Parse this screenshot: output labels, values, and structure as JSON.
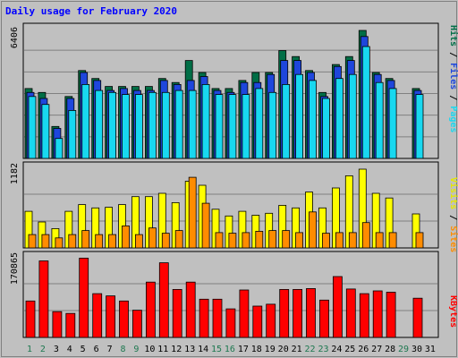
{
  "chart_data": [
    {
      "type": "bar",
      "title": "Daily usage for February 2020",
      "panel": "top",
      "ymax_label": "6406",
      "ylabel_parts": [
        "Pages",
        "Files",
        "Hits"
      ],
      "categories": [
        "1",
        "2",
        "3",
        "4",
        "5",
        "6",
        "7",
        "8",
        "9",
        "10",
        "11",
        "12",
        "13",
        "14",
        "15",
        "16",
        "17",
        "18",
        "19",
        "20",
        "21",
        "22",
        "23",
        "24",
        "25",
        "26",
        "27",
        "28",
        "29",
        "30",
        "31"
      ],
      "series": [
        {
          "name": "Hits",
          "color": "#006e46",
          "values": [
            3500,
            3300,
            1600,
            3100,
            4400,
            4000,
            3600,
            3600,
            3600,
            3600,
            4000,
            3800,
            4900,
            4300,
            3500,
            3500,
            3900,
            4300,
            4300,
            5400,
            5100,
            4400,
            3300,
            4700,
            5100,
            6406,
            4300,
            4000,
            null,
            3500,
            null
          ]
        },
        {
          "name": "Files",
          "color": "#1e46dc",
          "values": [
            3300,
            3000,
            1500,
            3000,
            4300,
            3900,
            3400,
            3500,
            3400,
            3400,
            3900,
            3700,
            3900,
            4100,
            3400,
            3300,
            3800,
            3800,
            4200,
            4900,
            4900,
            4300,
            3100,
            4600,
            4900,
            6100,
            4200,
            3900,
            null,
            3400,
            null
          ]
        },
        {
          "name": "Pages",
          "color": "#18d8f0",
          "values": [
            3100,
            2700,
            1000,
            2400,
            3700,
            3400,
            3300,
            3200,
            3200,
            3300,
            3300,
            3400,
            3400,
            3700,
            3200,
            3200,
            3200,
            3500,
            3300,
            3700,
            4200,
            3900,
            3000,
            4000,
            4200,
            5600,
            3800,
            3500,
            null,
            3200,
            null
          ]
        }
      ]
    },
    {
      "type": "bar",
      "panel": "middle",
      "ymax_label": "1182",
      "ylabel_parts": [
        "Sites",
        "Visits"
      ],
      "categories": [
        "1",
        "2",
        "3",
        "4",
        "5",
        "6",
        "7",
        "8",
        "9",
        "10",
        "11",
        "12",
        "13",
        "14",
        "15",
        "16",
        "17",
        "18",
        "19",
        "20",
        "21",
        "22",
        "23",
        "24",
        "25",
        "26",
        "27",
        "28",
        "29",
        "30",
        "31"
      ],
      "series": [
        {
          "name": "Visits",
          "color": "#ffff00",
          "values": [
            550,
            390,
            290,
            550,
            650,
            600,
            610,
            650,
            770,
            770,
            820,
            680,
            1000,
            940,
            580,
            480,
            550,
            490,
            520,
            640,
            600,
            840,
            600,
            900,
            1082,
            1182,
            820,
            750,
            null,
            510,
            null
          ]
        },
        {
          "name": "Sites",
          "color": "#ff8c00",
          "values": [
            200,
            200,
            150,
            200,
            260,
            200,
            200,
            330,
            200,
            300,
            220,
            260,
            1060,
            670,
            230,
            220,
            230,
            250,
            260,
            260,
            230,
            540,
            220,
            230,
            230,
            380,
            230,
            230,
            null,
            230,
            null
          ]
        }
      ]
    },
    {
      "type": "bar",
      "panel": "bottom",
      "ymax_label": "170865",
      "ylabel_parts": [
        "KBytes"
      ],
      "categories": [
        "1",
        "2",
        "3",
        "4",
        "5",
        "6",
        "7",
        "8",
        "9",
        "10",
        "11",
        "12",
        "13",
        "14",
        "15",
        "16",
        "17",
        "18",
        "19",
        "20",
        "21",
        "22",
        "23",
        "24",
        "25",
        "26",
        "27",
        "28",
        "29",
        "30",
        "31"
      ],
      "series": [
        {
          "name": "KBytes",
          "color": "#ff0000",
          "values": [
            79000,
            166000,
            56000,
            52000,
            172000,
            95000,
            90000,
            79000,
            59000,
            120000,
            162000,
            104000,
            120000,
            83000,
            83000,
            62000,
            103000,
            68000,
            72000,
            104000,
            104000,
            106000,
            81000,
            132000,
            105000,
            95000,
            101000,
            98000,
            null,
            85000,
            null
          ]
        }
      ]
    }
  ],
  "weekend_days": [
    "1",
    "2",
    "8",
    "9",
    "15",
    "16",
    "22",
    "23",
    "29"
  ],
  "colors": {
    "panel_bg": "#c0c0c0",
    "title": "#0000ff",
    "weekend_label": "#1e7850",
    "weekday_label": "#000000",
    "bar_stroke": "#000000",
    "gridline": "#808080"
  }
}
